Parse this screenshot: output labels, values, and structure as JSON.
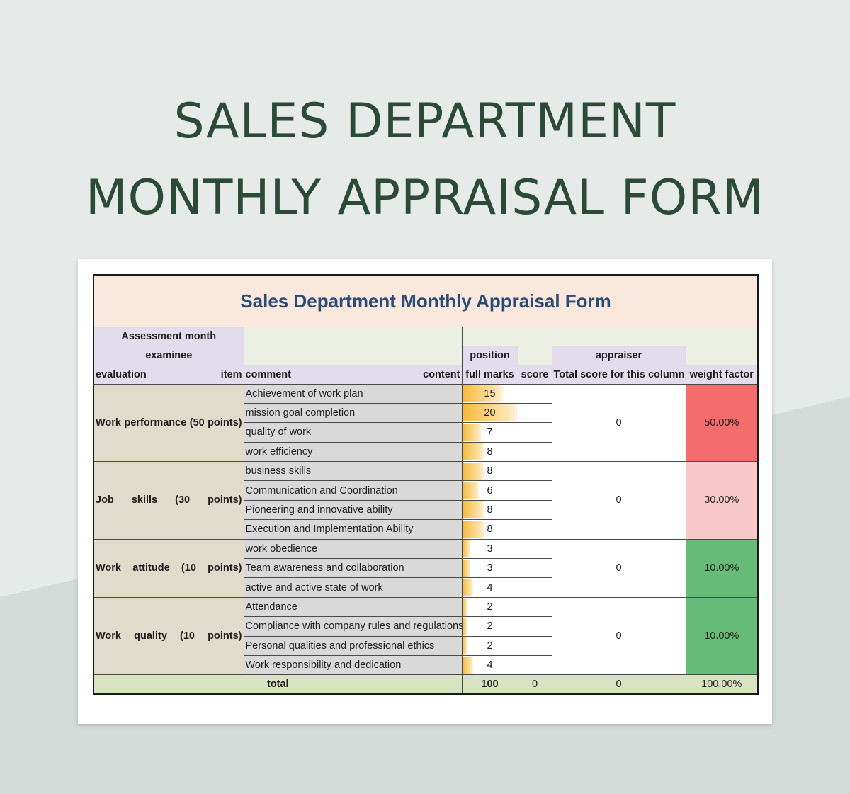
{
  "page": {
    "title_line1": "SALES DEPARTMENT",
    "title_line2": "MONTHLY APPRAISAL FORM"
  },
  "form": {
    "title": "Sales Department Monthly Appraisal Form",
    "labels": {
      "assessment_month": "Assessment month",
      "examinee": "examinee",
      "position": "position",
      "appraiser": "appraiser"
    },
    "headers": {
      "evaluation": "evaluation",
      "item": "item",
      "comment": "comment",
      "content": "content",
      "full_marks": "full marks",
      "score": "score",
      "total_score": "Total score for this column",
      "weight_factor": "weight factor"
    },
    "groups": [
      {
        "category": "Work performance (50 points)",
        "total": "0",
        "weight": "50.00%",
        "items": [
          {
            "name": "Achievement of work plan",
            "marks": "15",
            "fraction": 0.75
          },
          {
            "name": "mission goal completion",
            "marks": "20",
            "fraction": 1.0
          },
          {
            "name": "quality of work",
            "marks": "7",
            "fraction": 0.35
          },
          {
            "name": "work efficiency",
            "marks": "8",
            "fraction": 0.4
          }
        ]
      },
      {
        "category": "Job skills (30 points)",
        "total": "0",
        "weight": "30.00%",
        "items": [
          {
            "name": "business skills",
            "marks": "8",
            "fraction": 0.4
          },
          {
            "name": "Communication and Coordination",
            "marks": "6",
            "fraction": 0.3
          },
          {
            "name": "Pioneering and innovative ability",
            "marks": "8",
            "fraction": 0.4
          },
          {
            "name": "Execution and Implementation Ability",
            "marks": "8",
            "fraction": 0.4
          }
        ]
      },
      {
        "category": "Work attitude (10 points)",
        "total": "0",
        "weight": "10.00%",
        "items": [
          {
            "name": "work obedience",
            "marks": "3",
            "fraction": 0.15
          },
          {
            "name": "Team awareness and collaboration",
            "marks": "3",
            "fraction": 0.15
          },
          {
            "name": "active and active state of work",
            "marks": "4",
            "fraction": 0.2
          }
        ]
      },
      {
        "category": "Work quality (10 points)",
        "total": "0",
        "weight": "10.00%",
        "items": [
          {
            "name": "Attendance",
            "marks": "2",
            "fraction": 0.1
          },
          {
            "name": "Compliance with company rules and regulations",
            "marks": "2",
            "fraction": 0.1
          },
          {
            "name": "Personal qualities and professional ethics",
            "marks": "2",
            "fraction": 0.1
          },
          {
            "name": "Work responsibility and dedication",
            "marks": "4",
            "fraction": 0.2
          }
        ]
      }
    ],
    "totals": {
      "label": "total",
      "full_marks": "100",
      "score": "0",
      "column_total": "0",
      "weight": "100.00%"
    },
    "colors": {
      "weight_50": "#f46d6d",
      "weight_30": "#f8c8c9",
      "weight_10": "#66bb77",
      "title_text": "#2a4a78",
      "page_title_text": "#2b4a37"
    }
  }
}
